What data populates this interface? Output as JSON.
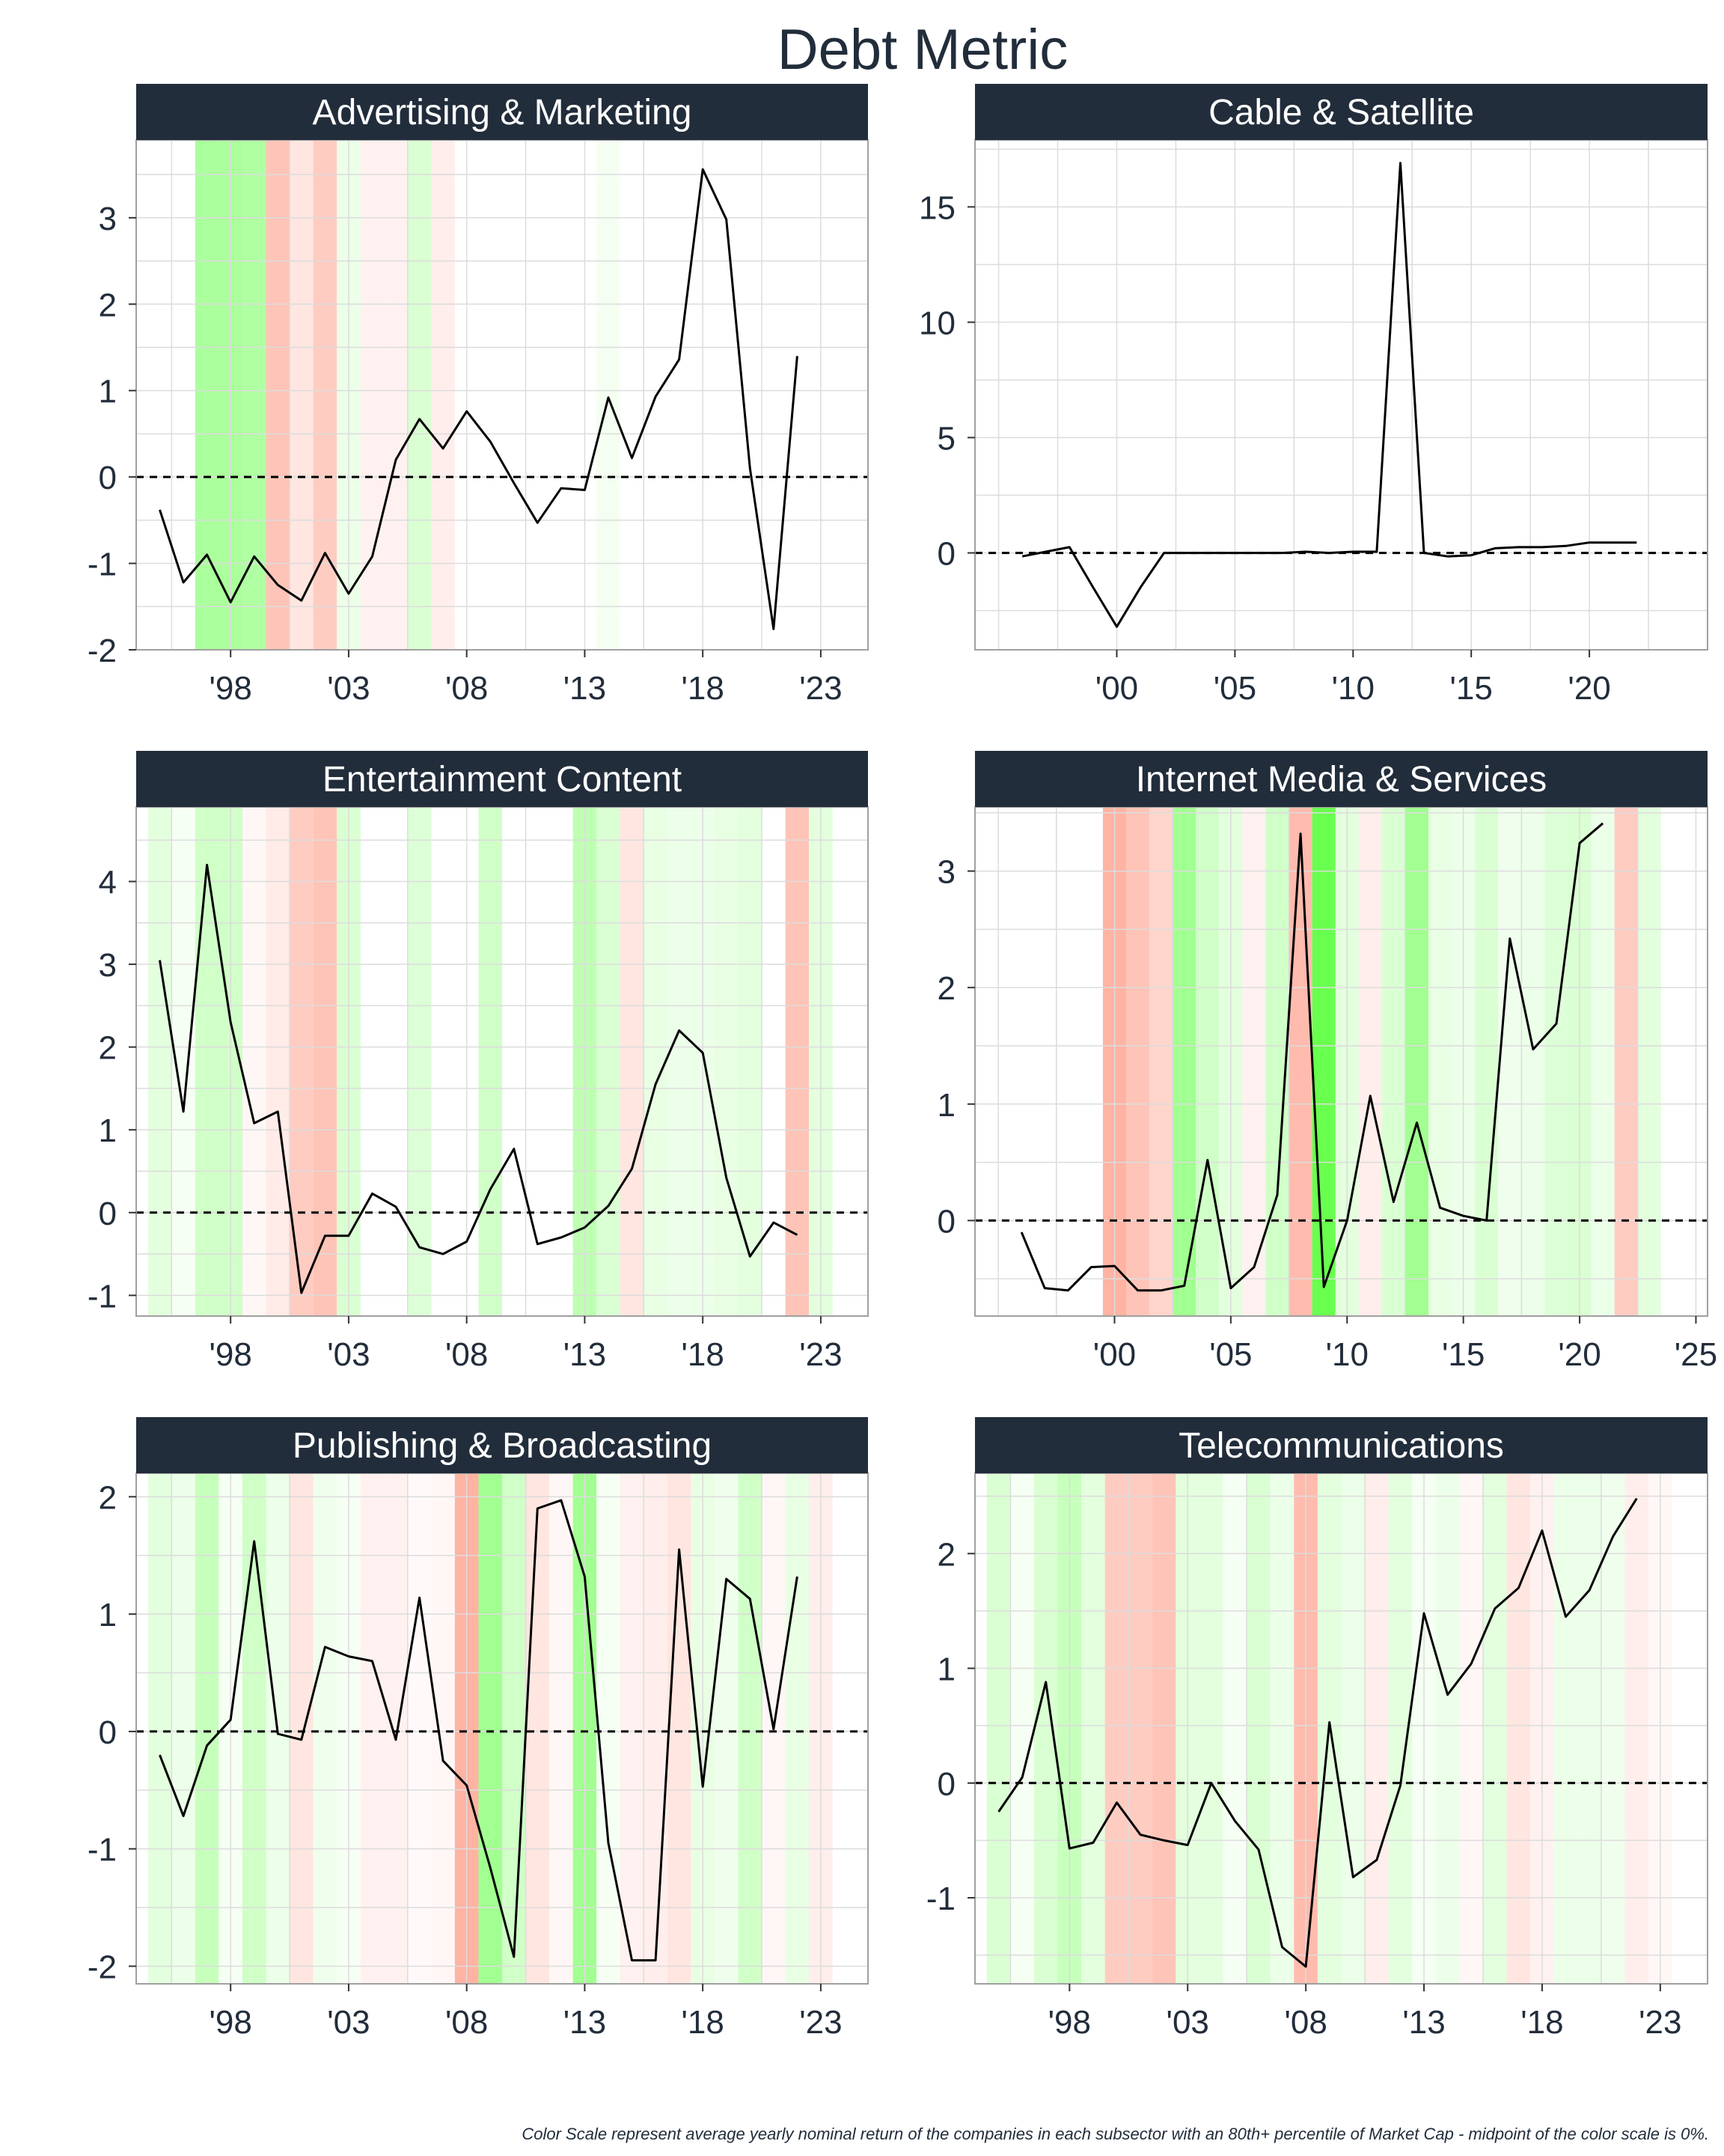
{
  "title": "Debt Metric",
  "caption": "Color Scale represent average yearly nominal return of the companies in each subsector with an 80th+ percentile of Market Cap - midpoint of the color scale is 0%.",
  "colors": {
    "strip": "#222d3b",
    "line": "#000000",
    "grid": "#dcdcdc",
    "panel_border": "#a0a0a0",
    "positive": "#44ff22",
    "negative": "#ff5533"
  },
  "chart_data": [
    {
      "type": "line",
      "title": "Advertising & Marketing",
      "xlim": [
        1994,
        2025
      ],
      "ylim": [
        -2.0,
        3.9
      ],
      "xticks": [
        1998,
        2003,
        2008,
        2013,
        2018,
        2023
      ],
      "xtick_labels": [
        "'98",
        "'03",
        "'08",
        "'13",
        "'18",
        "'23"
      ],
      "yticks": [
        -2,
        -1,
        0,
        1,
        2,
        3
      ],
      "ytick_labels": [
        "-2",
        "-1",
        "0",
        "1",
        "2",
        "3"
      ],
      "reference_line": 0,
      "x": [
        1995,
        1996,
        1997,
        1998,
        1999,
        2000,
        2001,
        2002,
        2003,
        2004,
        2005,
        2006,
        2007,
        2008,
        2009,
        2010,
        2011,
        2012,
        2013,
        2014,
        2015,
        2016,
        2017,
        2018,
        2019,
        2020,
        2021,
        2022
      ],
      "y": [
        -0.38,
        -1.22,
        -0.9,
        -1.45,
        -0.92,
        -1.25,
        -1.43,
        -0.88,
        -1.35,
        -0.92,
        0.2,
        0.67,
        0.33,
        0.76,
        0.41,
        -0.07,
        -0.53,
        -0.13,
        -0.15,
        0.92,
        0.22,
        0.93,
        1.36,
        3.56,
        2.98,
        0.1,
        -1.76,
        1.4
      ],
      "shading": [
        {
          "year": 1997,
          "value": 0.45
        },
        {
          "year": 1998,
          "value": 0.45
        },
        {
          "year": 1999,
          "value": 0.42
        },
        {
          "year": 2000,
          "value": -0.35
        },
        {
          "year": 2001,
          "value": -0.15
        },
        {
          "year": 2002,
          "value": -0.3
        },
        {
          "year": 2003,
          "value": 0.1
        },
        {
          "year": 2004,
          "value": -0.08
        },
        {
          "year": 2005,
          "value": -0.08
        },
        {
          "year": 2006,
          "value": 0.2
        },
        {
          "year": 2007,
          "value": -0.1
        },
        {
          "year": 2014,
          "value": 0.06
        }
      ]
    },
    {
      "type": "line",
      "title": "Cable & Satellite",
      "xlim": [
        1994,
        2025
      ],
      "ylim": [
        -4.2,
        17.9
      ],
      "xticks": [
        2000,
        2005,
        2010,
        2015,
        2020
      ],
      "xtick_labels": [
        "'00",
        "'05",
        "'10",
        "'15",
        "'20"
      ],
      "yticks": [
        0,
        5,
        10,
        15
      ],
      "ytick_labels": [
        "0",
        "5",
        "10",
        "15"
      ],
      "reference_line": 0,
      "x": [
        1996,
        1997,
        1998,
        1999,
        2000,
        2001,
        2002,
        2003,
        2004,
        2005,
        2006,
        2007,
        2008,
        2009,
        2010,
        2011,
        2012,
        2013,
        2014,
        2015,
        2016,
        2017,
        2018,
        2019,
        2020,
        2021,
        2022
      ],
      "y": [
        -0.15,
        0.05,
        0.25,
        -1.5,
        -3.2,
        -1.5,
        0.0,
        0.0,
        0.0,
        0.0,
        0.0,
        0.0,
        0.05,
        0.0,
        0.05,
        0.05,
        16.9,
        0.0,
        -0.15,
        -0.1,
        0.2,
        0.25,
        0.25,
        0.3,
        0.45,
        0.45,
        0.45
      ],
      "shading": []
    },
    {
      "type": "line",
      "title": "Entertainment Content",
      "xlim": [
        1994,
        2025
      ],
      "ylim": [
        -1.25,
        4.9
      ],
      "xticks": [
        1998,
        2003,
        2008,
        2013,
        2018,
        2023
      ],
      "xtick_labels": [
        "'98",
        "'03",
        "'08",
        "'13",
        "'18",
        "'23"
      ],
      "yticks": [
        -1,
        0,
        1,
        2,
        3,
        4
      ],
      "ytick_labels": [
        "-1",
        "0",
        "1",
        "2",
        "3",
        "4"
      ],
      "reference_line": 0,
      "x": [
        1995,
        1996,
        1997,
        1998,
        1999,
        2000,
        2001,
        2002,
        2003,
        2004,
        2005,
        2006,
        2007,
        2008,
        2009,
        2010,
        2011,
        2012,
        2013,
        2014,
        2015,
        2016,
        2017,
        2018,
        2019,
        2020,
        2021,
        2022
      ],
      "y": [
        3.05,
        1.22,
        4.2,
        2.3,
        1.08,
        1.22,
        -0.97,
        -0.28,
        -0.28,
        0.23,
        0.07,
        -0.42,
        -0.5,
        -0.35,
        0.28,
        0.77,
        -0.38,
        -0.3,
        -0.18,
        0.08,
        0.53,
        1.55,
        2.2,
        1.93,
        0.42,
        -0.53,
        -0.12,
        -0.27
      ],
      "shading": [
        {
          "year": 1995,
          "value": 0.15
        },
        {
          "year": 1996,
          "value": 0.05
        },
        {
          "year": 1997,
          "value": 0.25
        },
        {
          "year": 1998,
          "value": 0.25
        },
        {
          "year": 1999,
          "value": -0.05
        },
        {
          "year": 2000,
          "value": -0.12
        },
        {
          "year": 2001,
          "value": -0.3
        },
        {
          "year": 2002,
          "value": -0.35
        },
        {
          "year": 2003,
          "value": 0.2
        },
        {
          "year": 2006,
          "value": 0.18
        },
        {
          "year": 2009,
          "value": 0.25
        },
        {
          "year": 2013,
          "value": 0.35
        },
        {
          "year": 2014,
          "value": 0.2
        },
        {
          "year": 2015,
          "value": -0.15
        },
        {
          "year": 2016,
          "value": 0.12
        },
        {
          "year": 2017,
          "value": 0.1
        },
        {
          "year": 2018,
          "value": 0.1
        },
        {
          "year": 2019,
          "value": 0.12
        },
        {
          "year": 2020,
          "value": 0.15
        },
        {
          "year": 2022,
          "value": -0.35
        },
        {
          "year": 2023,
          "value": 0.15
        }
      ]
    },
    {
      "type": "line",
      "title": "Internet Media & Services",
      "xlim": [
        1994,
        2025.5
      ],
      "ylim": [
        -0.82,
        3.55
      ],
      "xticks": [
        2000,
        2005,
        2010,
        2015,
        2020,
        2025
      ],
      "xtick_labels": [
        "'00",
        "'05",
        "'10",
        "'15",
        "'20",
        "'25"
      ],
      "yticks": [
        0,
        1,
        2,
        3
      ],
      "ytick_labels": [
        "0",
        "1",
        "2",
        "3"
      ],
      "reference_line": 0,
      "x": [
        1996,
        1997,
        1998,
        1999,
        2000,
        2001,
        2002,
        2003,
        2004,
        2005,
        2006,
        2007,
        2008,
        2009,
        2010,
        2011,
        2012,
        2013,
        2014,
        2015,
        2016,
        2017,
        2018,
        2019,
        2020,
        2021,
        2022
      ],
      "y": [
        -0.1,
        -0.58,
        -0.6,
        -0.4,
        -0.39,
        -0.6,
        -0.6,
        -0.56,
        0.52,
        -0.58,
        -0.4,
        0.22,
        3.32,
        -0.57,
        0.0,
        1.07,
        0.16,
        0.84,
        0.11,
        0.04,
        0.0,
        2.42,
        1.47,
        1.69,
        3.24,
        3.41,
        null
      ],
      "shading": [
        {
          "year": 2000,
          "value": -0.45
        },
        {
          "year": 2001,
          "value": -0.35
        },
        {
          "year": 2002,
          "value": -0.25
        },
        {
          "year": 2003,
          "value": 0.5
        },
        {
          "year": 2004,
          "value": 0.25
        },
        {
          "year": 2005,
          "value": 0.15
        },
        {
          "year": 2006,
          "value": -0.08
        },
        {
          "year": 2007,
          "value": 0.25
        },
        {
          "year": 2008,
          "value": -0.4
        },
        {
          "year": 2009,
          "value": 0.8
        },
        {
          "year": 2010,
          "value": 0.15
        },
        {
          "year": 2011,
          "value": -0.1
        },
        {
          "year": 2012,
          "value": 0.2
        },
        {
          "year": 2013,
          "value": 0.5
        },
        {
          "year": 2014,
          "value": 0.12
        },
        {
          "year": 2015,
          "value": 0.1
        },
        {
          "year": 2016,
          "value": 0.2
        },
        {
          "year": 2017,
          "value": 0.08
        },
        {
          "year": 2018,
          "value": 0.1
        },
        {
          "year": 2019,
          "value": 0.18
        },
        {
          "year": 2020,
          "value": 0.2
        },
        {
          "year": 2021,
          "value": 0.1
        },
        {
          "year": 2022,
          "value": -0.3
        },
        {
          "year": 2023,
          "value": 0.15
        }
      ]
    },
    {
      "type": "line",
      "title": "Publishing & Broadcasting",
      "xlim": [
        1994,
        2025
      ],
      "ylim": [
        -2.15,
        2.2
      ],
      "xticks": [
        1998,
        2003,
        2008,
        2013,
        2018,
        2023
      ],
      "xtick_labels": [
        "'98",
        "'03",
        "'08",
        "'13",
        "'18",
        "'23"
      ],
      "yticks": [
        -2,
        -1,
        0,
        1,
        2
      ],
      "ytick_labels": [
        "-2",
        "-1",
        "0",
        "1",
        "2"
      ],
      "reference_line": 0,
      "x": [
        1995,
        1996,
        1997,
        1998,
        1999,
        2000,
        2001,
        2002,
        2003,
        2004,
        2005,
        2006,
        2007,
        2008,
        2009,
        2010,
        2011,
        2012,
        2013,
        2014,
        2015,
        2016,
        2017,
        2018,
        2019,
        2020,
        2021,
        2022
      ],
      "y": [
        -0.2,
        -0.72,
        -0.12,
        0.1,
        1.62,
        -0.02,
        -0.07,
        0.72,
        0.64,
        0.6,
        -0.07,
        1.14,
        -0.25,
        -0.46,
        -1.16,
        -1.92,
        1.9,
        1.97,
        1.32,
        -0.95,
        -1.95,
        -1.95,
        1.55,
        -0.47,
        1.3,
        1.13,
        0.02,
        1.32
      ],
      "shading": [
        {
          "year": 1995,
          "value": 0.15
        },
        {
          "year": 1996,
          "value": 0.1
        },
        {
          "year": 1997,
          "value": 0.3
        },
        {
          "year": 1998,
          "value": 0.05
        },
        {
          "year": 1999,
          "value": 0.25
        },
        {
          "year": 2000,
          "value": 0.1
        },
        {
          "year": 2001,
          "value": -0.15
        },
        {
          "year": 2002,
          "value": 0.08
        },
        {
          "year": 2003,
          "value": 0.05
        },
        {
          "year": 2004,
          "value": -0.08
        },
        {
          "year": 2005,
          "value": -0.08
        },
        {
          "year": 2006,
          "value": -0.03
        },
        {
          "year": 2007,
          "value": -0.05
        },
        {
          "year": 2008,
          "value": -0.45
        },
        {
          "year": 2009,
          "value": 0.5
        },
        {
          "year": 2010,
          "value": 0.25
        },
        {
          "year": 2011,
          "value": -0.15
        },
        {
          "year": 2012,
          "value": -0.05
        },
        {
          "year": 2013,
          "value": 0.5
        },
        {
          "year": 2014,
          "value": 0.05
        },
        {
          "year": 2015,
          "value": -0.08
        },
        {
          "year": 2016,
          "value": -0.1
        },
        {
          "year": 2017,
          "value": -0.15
        },
        {
          "year": 2018,
          "value": 0.12
        },
        {
          "year": 2019,
          "value": 0.08
        },
        {
          "year": 2020,
          "value": 0.25
        },
        {
          "year": 2021,
          "value": -0.05
        },
        {
          "year": 2022,
          "value": 0.12
        },
        {
          "year": 2023,
          "value": -0.1
        }
      ]
    },
    {
      "type": "line",
      "title": "Telecommunications",
      "xlim": [
        1994,
        2025
      ],
      "ylim": [
        -1.75,
        2.7
      ],
      "xticks": [
        1998,
        2003,
        2008,
        2013,
        2018,
        2023
      ],
      "xtick_labels": [
        "'98",
        "'03",
        "'08",
        "'13",
        "'18",
        "'23"
      ],
      "yticks": [
        -1,
        0,
        1,
        2
      ],
      "ytick_labels": [
        "-1",
        "0",
        "1",
        "2"
      ],
      "reference_line": 0,
      "x": [
        1995,
        1996,
        1997,
        1998,
        1999,
        2000,
        2001,
        2002,
        2003,
        2004,
        2005,
        2006,
        2007,
        2008,
        2009,
        2010,
        2011,
        2012,
        2013,
        2014,
        2015,
        2016,
        2017,
        2018,
        2019,
        2020,
        2021,
        2022
      ],
      "y": [
        -0.25,
        0.05,
        0.88,
        -0.57,
        -0.52,
        -0.17,
        -0.45,
        -0.5,
        -0.54,
        0.0,
        -0.33,
        -0.58,
        -1.43,
        -1.6,
        0.53,
        -0.82,
        -0.67,
        -0.02,
        1.48,
        0.77,
        1.04,
        1.52,
        1.7,
        2.2,
        1.45,
        1.68,
        2.15,
        2.48
      ],
      "shading": [
        {
          "year": 1995,
          "value": 0.2
        },
        {
          "year": 1996,
          "value": 0.05
        },
        {
          "year": 1997,
          "value": 0.2
        },
        {
          "year": 1998,
          "value": 0.3
        },
        {
          "year": 1999,
          "value": 0.15
        },
        {
          "year": 2000,
          "value": -0.3
        },
        {
          "year": 2001,
          "value": -0.3
        },
        {
          "year": 2002,
          "value": -0.35
        },
        {
          "year": 2003,
          "value": 0.15
        },
        {
          "year": 2004,
          "value": 0.15
        },
        {
          "year": 2005,
          "value": 0.05
        },
        {
          "year": 2006,
          "value": 0.2
        },
        {
          "year": 2007,
          "value": 0.1
        },
        {
          "year": 2008,
          "value": -0.4
        },
        {
          "year": 2009,
          "value": 0.15
        },
        {
          "year": 2010,
          "value": 0.1
        },
        {
          "year": 2011,
          "value": -0.1
        },
        {
          "year": 2012,
          "value": 0.15
        },
        {
          "year": 2013,
          "value": 0.05
        },
        {
          "year": 2014,
          "value": 0.1
        },
        {
          "year": 2015,
          "value": -0.05
        },
        {
          "year": 2016,
          "value": 0.15
        },
        {
          "year": 2017,
          "value": -0.15
        },
        {
          "year": 2018,
          "value": -0.08
        },
        {
          "year": 2019,
          "value": 0.1
        },
        {
          "year": 2020,
          "value": 0.1
        },
        {
          "year": 2021,
          "value": 0.08
        },
        {
          "year": 2022,
          "value": -0.1
        },
        {
          "year": 2023,
          "value": -0.05
        }
      ]
    }
  ]
}
